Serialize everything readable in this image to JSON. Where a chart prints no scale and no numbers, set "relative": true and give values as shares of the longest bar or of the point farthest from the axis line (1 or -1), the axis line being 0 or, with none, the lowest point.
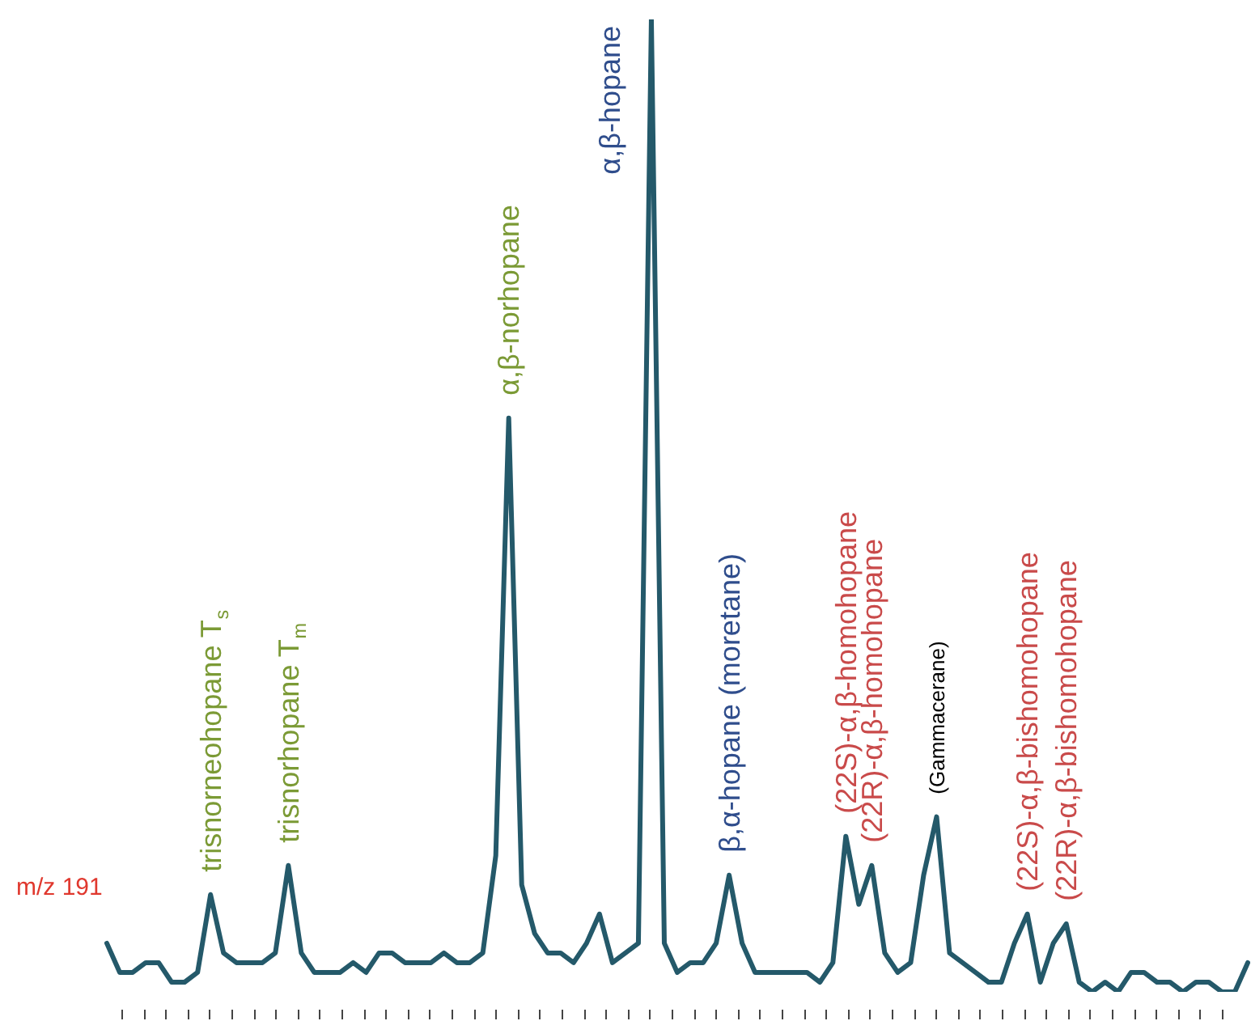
{
  "chart_data": {
    "type": "line",
    "relative": true,
    "categories": [
      null,
      null,
      null,
      null,
      null,
      null,
      null,
      null,
      null,
      null,
      null,
      null,
      null,
      null,
      null,
      null,
      null,
      null,
      null,
      null,
      null,
      null,
      null,
      null,
      null,
      null,
      null,
      null,
      null,
      null,
      null,
      null,
      null,
      null,
      null,
      null,
      null,
      null,
      null,
      null,
      null,
      null,
      null,
      null,
      null,
      null,
      null,
      null,
      null,
      null,
      null,
      null,
      null,
      null,
      null,
      null,
      null,
      null,
      null,
      null,
      null,
      null,
      null,
      null,
      null,
      null,
      null,
      null,
      null,
      null,
      null,
      null,
      null,
      null,
      null,
      null,
      null,
      null,
      null,
      null,
      null,
      null,
      null,
      null,
      null,
      null,
      null,
      null,
      null
    ],
    "series": [
      {
        "color": "#24596a",
        "values": [
          0.05,
          0.02,
          0.02,
          0.03,
          0.03,
          0.01,
          0.01,
          0.02,
          0.1,
          0.04,
          0.03,
          0.03,
          0.03,
          0.04,
          0.13,
          0.04,
          0.02,
          0.02,
          0.02,
          0.03,
          0.02,
          0.04,
          0.04,
          0.03,
          0.03,
          0.03,
          0.04,
          0.03,
          0.03,
          0.04,
          0.14,
          0.59,
          0.11,
          0.06,
          0.04,
          0.04,
          0.03,
          0.05,
          0.08,
          0.03,
          0.04,
          0.05,
          1.0,
          0.05,
          0.02,
          0.03,
          0.03,
          0.05,
          0.12,
          0.05,
          0.02,
          0.02,
          0.02,
          0.02,
          0.02,
          0.01,
          0.03,
          0.16,
          0.09,
          0.13,
          0.04,
          0.02,
          0.03,
          0.12,
          0.18,
          0.04,
          0.03,
          0.02,
          0.01,
          0.01,
          0.05,
          0.08,
          0.01,
          0.05,
          0.07,
          0.01,
          0,
          0.01,
          0,
          0.02,
          0.02,
          0.01,
          0.01,
          0,
          0.01,
          0.01,
          0,
          0,
          0.03
        ]
      }
    ],
    "grid": false,
    "legend": false,
    "marker": "none",
    "line_style": "solid",
    "annotations": [
      "m/z 191",
      {
        "text": "trisnorneohopane T$_{s}$",
        "y": 0.1
      },
      {
        "text": "trisnorhopane T$_{m}$",
        "y": 0.13
      },
      {
        "text": "α,β-norhopane",
        "y": 0.59
      },
      "α,β-hopane",
      {
        "text": "β,α-hopane (moretane)",
        "y": 0.12
      },
      {
        "text": "(22S)-α,β-homohopane",
        "y": 0.16
      },
      {
        "text": "(22R)-α,β-homohopane",
        "y": 0.13
      },
      {
        "text": "(Gammacerane)",
        "y": 0.18
      },
      {
        "text": "(22S)-α,β-bishomohopane",
        "y": 0.08
      },
      {
        "text": "(22R)-α,β-bishomohopane",
        "y": 0.07
      }
    ]
  }
}
